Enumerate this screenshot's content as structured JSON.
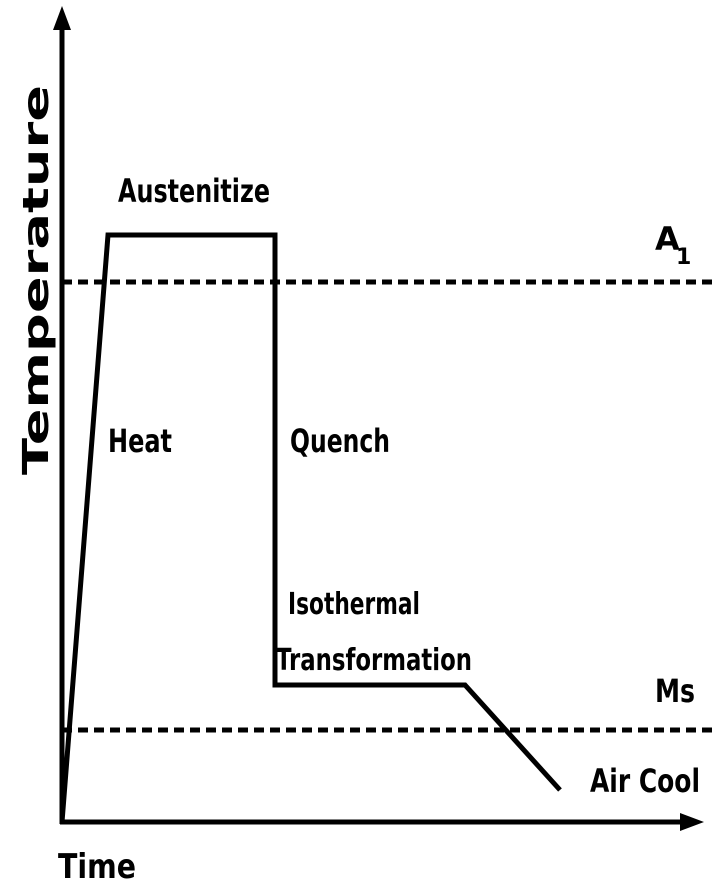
{
  "axes": {
    "y_label": "Temperature",
    "x_label": "Time"
  },
  "reference_lines": {
    "a1": {
      "main": "A",
      "subscript": "1"
    },
    "ms": "Ms"
  },
  "stages": {
    "austenitize": "Austenitize",
    "heat": "Heat",
    "quench": "Quench",
    "isothermal": [
      "Isothermal",
      "Transformation"
    ],
    "air_cool": "Air Cool"
  }
}
